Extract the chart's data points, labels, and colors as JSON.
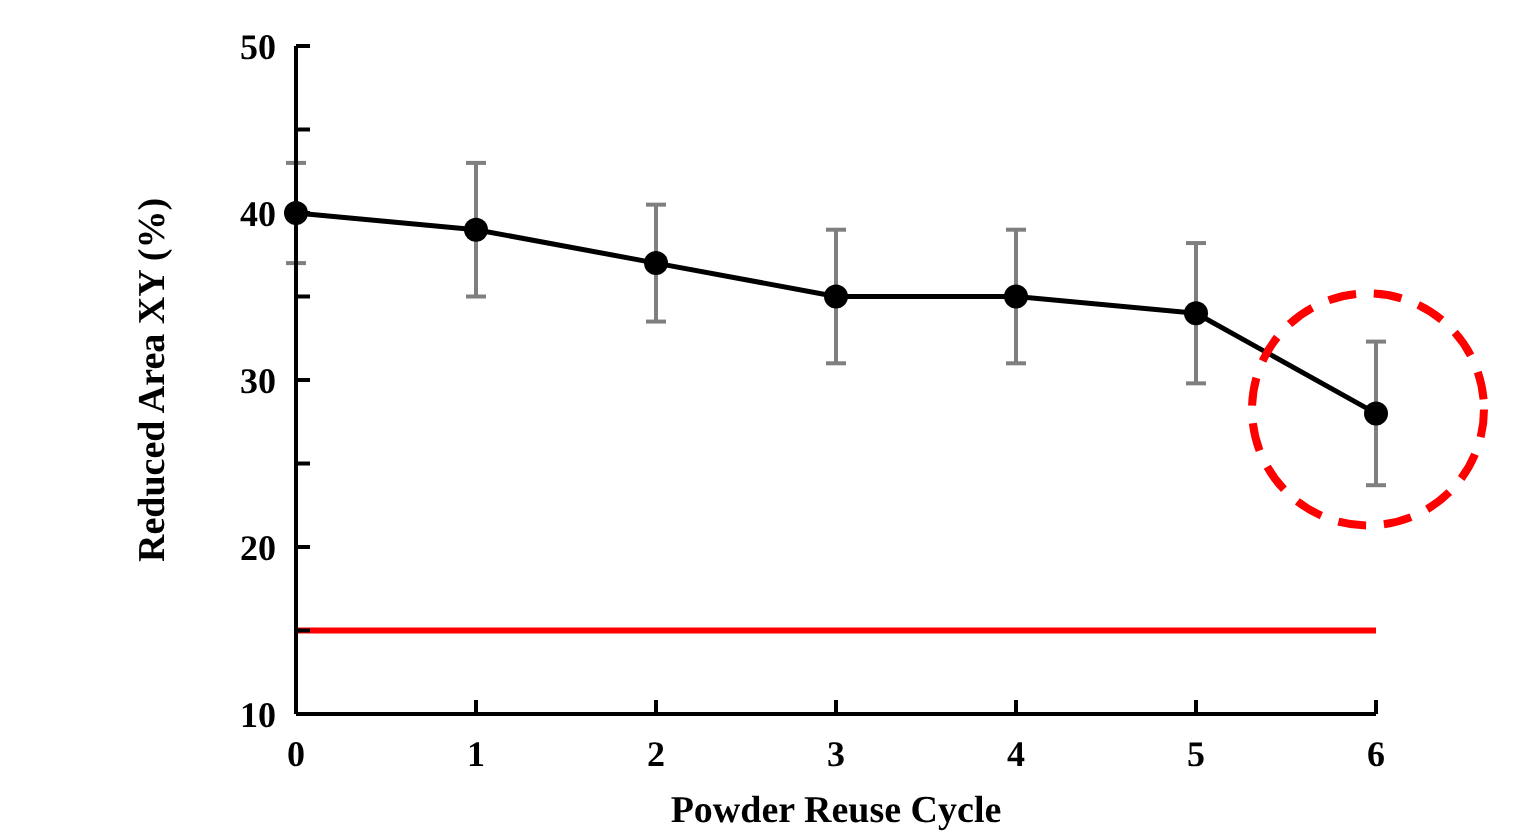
{
  "chart_data": {
    "type": "line",
    "xlabel": "Powder Reuse Cycle",
    "ylabel": "Reduced Area XY (%)",
    "x": [
      0,
      1,
      2,
      3,
      4,
      5,
      6
    ],
    "series": [
      {
        "color": "#000000",
        "values": [
          40,
          39,
          37,
          35,
          35,
          34,
          28
        ],
        "errors": [
          3,
          4,
          3.5,
          4,
          4,
          4.2,
          4.3
        ]
      }
    ],
    "xlim": [
      0,
      6
    ],
    "xticks": [
      0,
      1,
      2,
      3,
      4,
      5,
      6
    ],
    "ylim": [
      10,
      50
    ],
    "yticks": [
      10,
      {
        "value": 15,
        "label": null
      },
      20,
      {
        "value": 25,
        "label": null
      },
      30,
      {
        "value": 35,
        "label": null
      },
      40,
      {
        "value": 45,
        "label": null
      },
      50
    ],
    "ref_lines": [
      {
        "axis": "y",
        "value": 15,
        "color": "#ff0000"
      }
    ],
    "marker": "circle",
    "line_style": "solid",
    "grid": false
  }
}
